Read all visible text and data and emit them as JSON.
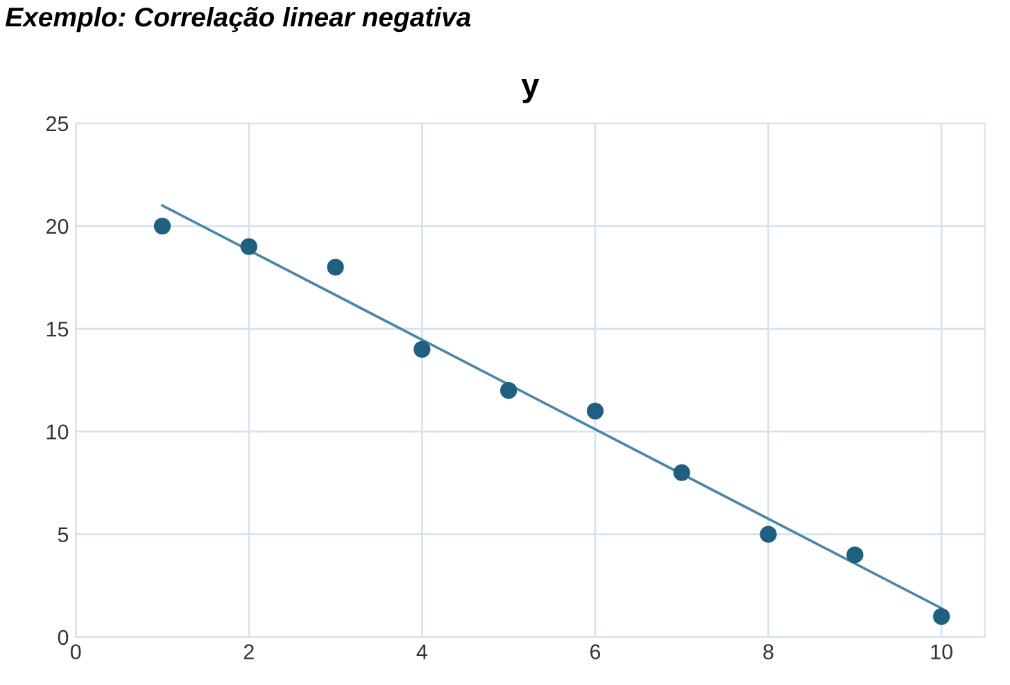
{
  "chart_data": {
    "type": "scatter",
    "title": "y",
    "annotations": [
      "Exemplo: Correlação linear negativa"
    ],
    "x": [
      1,
      2,
      3,
      4,
      5,
      6,
      7,
      8,
      9,
      10
    ],
    "series": [
      {
        "color": "#1f5f80",
        "marker": "circle",
        "values": [
          20,
          19,
          18,
          14,
          12,
          11,
          8,
          5,
          4,
          1
        ]
      },
      {
        "type": "line",
        "color": "#4a86a6",
        "marker": "none",
        "x": [
          1,
          10
        ],
        "values": [
          21.0,
          1.4
        ]
      }
    ],
    "xlim": [
      0,
      10.5
    ],
    "xticks": [
      0,
      2,
      4,
      6,
      8,
      10
    ],
    "ylim": [
      0,
      25
    ],
    "yticks": [
      0,
      5,
      10,
      15,
      20,
      25
    ],
    "grid": true,
    "legend": false
  }
}
